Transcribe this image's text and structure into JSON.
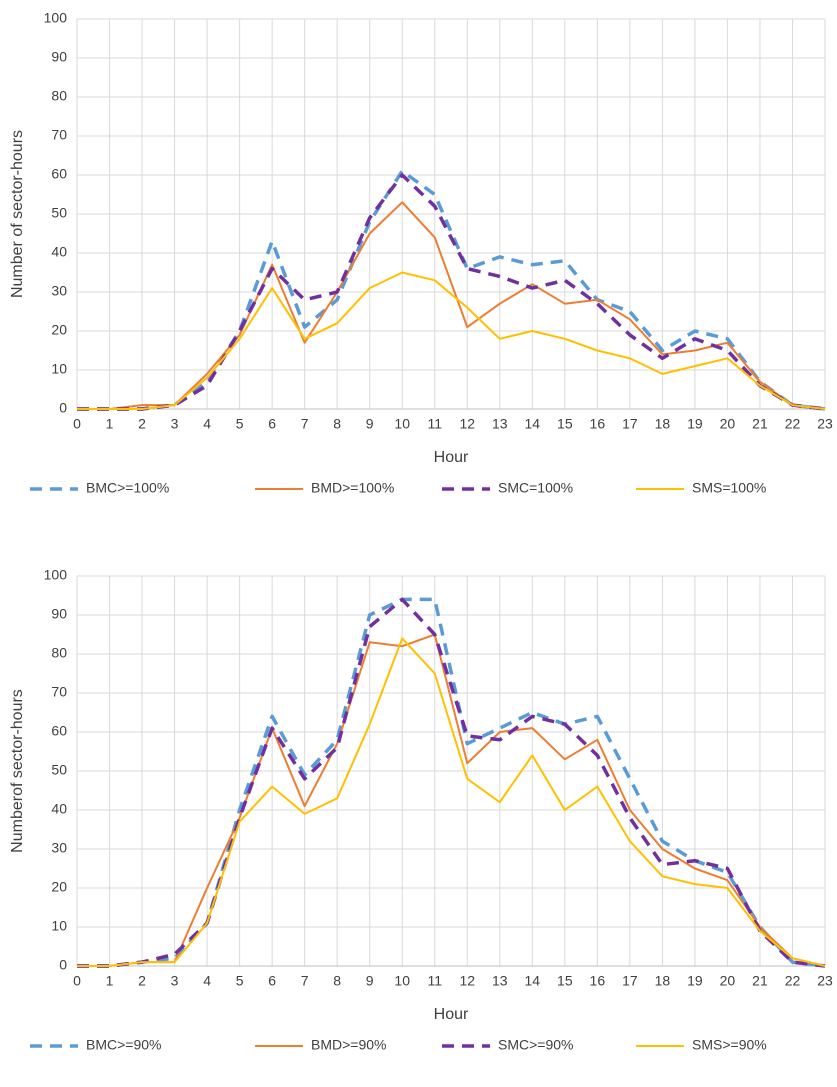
{
  "chart_data": [
    {
      "type": "line",
      "x_label": "Hour",
      "y_label": "Number of sector-hours",
      "x": [
        0,
        1,
        2,
        3,
        4,
        5,
        6,
        7,
        8,
        9,
        10,
        11,
        12,
        13,
        14,
        15,
        16,
        17,
        18,
        19,
        20,
        21,
        22,
        23
      ],
      "xlim": [
        0,
        23
      ],
      "xticks": [
        0,
        1,
        2,
        3,
        4,
        5,
        6,
        7,
        8,
        9,
        10,
        11,
        12,
        13,
        14,
        15,
        16,
        17,
        18,
        19,
        20,
        21,
        22,
        23
      ],
      "ylim": [
        0,
        100
      ],
      "yticks": [
        0,
        10,
        20,
        30,
        40,
        50,
        60,
        70,
        80,
        90,
        100
      ],
      "grid": true,
      "legend": "bottom",
      "series": [
        {
          "name": "BMC>=100%",
          "color": "#5b9bd5",
          "dashed": true,
          "values": [
            0,
            0,
            0,
            1,
            7,
            20,
            43,
            21,
            28,
            48,
            61,
            55,
            36,
            39,
            37,
            38,
            28,
            25,
            15,
            20,
            18,
            7,
            1,
            0
          ]
        },
        {
          "name": "BMD>=100%",
          "color": "#ed7d31",
          "dashed": false,
          "values": [
            0,
            0,
            1,
            1,
            9,
            19,
            37,
            17,
            30,
            45,
            53,
            44,
            21,
            27,
            32,
            27,
            28,
            23,
            14,
            15,
            17,
            7,
            1,
            0
          ]
        },
        {
          "name": "SMC=100%",
          "color": "#7030a0",
          "dashed": true,
          "values": [
            0,
            0,
            0,
            1,
            6,
            20,
            36,
            28,
            30,
            49,
            60,
            52,
            36,
            34,
            31,
            33,
            27,
            19,
            13,
            18,
            15,
            6,
            1,
            0
          ]
        },
        {
          "name": "SMS=100%",
          "color": "#ffc000",
          "dashed": false,
          "values": [
            0,
            0,
            0,
            1,
            8,
            18,
            31,
            18,
            22,
            31,
            35,
            33,
            26,
            18,
            20,
            18,
            15,
            13,
            9,
            11,
            13,
            6,
            1,
            0
          ]
        }
      ]
    },
    {
      "type": "line",
      "x_label": "Hour",
      "y_label": "Numberof sector-hours",
      "x": [
        0,
        1,
        2,
        3,
        4,
        5,
        6,
        7,
        8,
        9,
        10,
        11,
        12,
        13,
        14,
        15,
        16,
        17,
        18,
        19,
        20,
        21,
        22,
        23
      ],
      "xlim": [
        0,
        23
      ],
      "xticks": [
        0,
        1,
        2,
        3,
        4,
        5,
        6,
        7,
        8,
        9,
        10,
        11,
        12,
        13,
        14,
        15,
        16,
        17,
        18,
        19,
        20,
        21,
        22,
        23
      ],
      "ylim": [
        0,
        100
      ],
      "yticks": [
        0,
        10,
        20,
        30,
        40,
        50,
        60,
        70,
        80,
        90,
        100
      ],
      "grid": true,
      "legend": "bottom",
      "series": [
        {
          "name": "BMC>=90%",
          "color": "#5b9bd5",
          "dashed": true,
          "values": [
            0,
            0,
            1,
            2,
            11,
            40,
            64,
            49,
            58,
            90,
            94,
            94,
            57,
            61,
            65,
            62,
            64,
            48,
            32,
            27,
            24,
            10,
            1,
            0
          ]
        },
        {
          "name": "BMD>=90%",
          "color": "#ed7d31",
          "dashed": false,
          "values": [
            0,
            0,
            1,
            1,
            20,
            38,
            61,
            41,
            57,
            83,
            82,
            85,
            52,
            60,
            61,
            53,
            58,
            40,
            30,
            25,
            22,
            10,
            2,
            0
          ]
        },
        {
          "name": "SMC>=90%",
          "color": "#7030a0",
          "dashed": true,
          "values": [
            0,
            0,
            1,
            3,
            11,
            38,
            61,
            48,
            56,
            87,
            94,
            85,
            59,
            58,
            64,
            62,
            54,
            38,
            26,
            27,
            25,
            9,
            1,
            0
          ]
        },
        {
          "name": "SMS>=90%",
          "color": "#ffc000",
          "dashed": false,
          "values": [
            0,
            0,
            1,
            1,
            11,
            37,
            46,
            39,
            43,
            62,
            84,
            75,
            48,
            42,
            54,
            40,
            46,
            32,
            23,
            21,
            20,
            9,
            2,
            0
          ]
        }
      ]
    }
  ]
}
